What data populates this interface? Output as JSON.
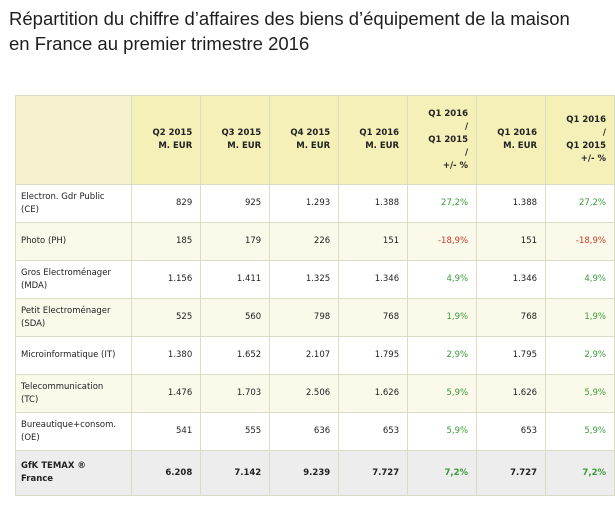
{
  "title": {
    "line1": "Répartition du chiffre d’affaires des biens d’équipement de la maison",
    "line2": "en France au premier trimestre 2016"
  },
  "table": {
    "headers": [
      [
        ""
      ],
      [
        "Q2 2015",
        "M. EUR"
      ],
      [
        "Q3 2015",
        "M. EUR"
      ],
      [
        "Q4 2015",
        "M. EUR"
      ],
      [
        "Q1 2016",
        "M. EUR"
      ],
      [
        "Q1 2016",
        "/",
        "Q1 2015",
        "/",
        "+/- %"
      ],
      [
        "Q1 2016",
        "M. EUR"
      ],
      [
        "Q1 2016",
        "/",
        "Q1 2015",
        "+/- %"
      ]
    ],
    "rows": [
      {
        "label": [
          "Electron. Gdr Public",
          "(CE)"
        ],
        "cells": [
          "829",
          "925",
          "1.293",
          "1.388",
          "27,2%",
          "1.388",
          "27,2%"
        ],
        "status": "pos"
      },
      {
        "label": [
          "Photo (PH)"
        ],
        "cells": [
          "185",
          "179",
          "226",
          "151",
          "-18,9%",
          "151",
          "-18,9%"
        ],
        "status": "neg"
      },
      {
        "label": [
          "Gros Electroménager",
          "(MDA)"
        ],
        "cells": [
          "1.156",
          "1.411",
          "1.325",
          "1.346",
          "4,9%",
          "1.346",
          "4,9%"
        ],
        "status": "pos"
      },
      {
        "label": [
          "Petit Electroménager",
          "(SDA)"
        ],
        "cells": [
          "525",
          "560",
          "798",
          "768",
          "1,9%",
          "768",
          "1,9%"
        ],
        "status": "pos"
      },
      {
        "label": [
          "Microinformatique (IT)"
        ],
        "cells": [
          "1.380",
          "1.652",
          "2.107",
          "1.795",
          "2,9%",
          "1.795",
          "2,9%"
        ],
        "status": "pos"
      },
      {
        "label": [
          "Telecommunication",
          "(TC)"
        ],
        "cells": [
          "1.476",
          "1.703",
          "2.506",
          "1.626",
          "5,9%",
          "1.626",
          "5,9%"
        ],
        "status": "pos"
      },
      {
        "label": [
          "Bureautique+consom.",
          "(OE)"
        ],
        "cells": [
          "541",
          "555",
          "636",
          "653",
          "5,9%",
          "653",
          "5,9%"
        ],
        "status": "pos"
      }
    ],
    "total": {
      "label": [
        "GfK TEMAX ®",
        "France"
      ],
      "cells": [
        "6.208",
        "7.142",
        "9.239",
        "7.727",
        "7,2%",
        "7.727",
        "7,2%"
      ],
      "status": "pos"
    }
  },
  "colors": {
    "header_bg": "#f5efb8",
    "positive": "#3a9a3a",
    "negative": "#c23b2b",
    "total_bg": "#ededed"
  }
}
